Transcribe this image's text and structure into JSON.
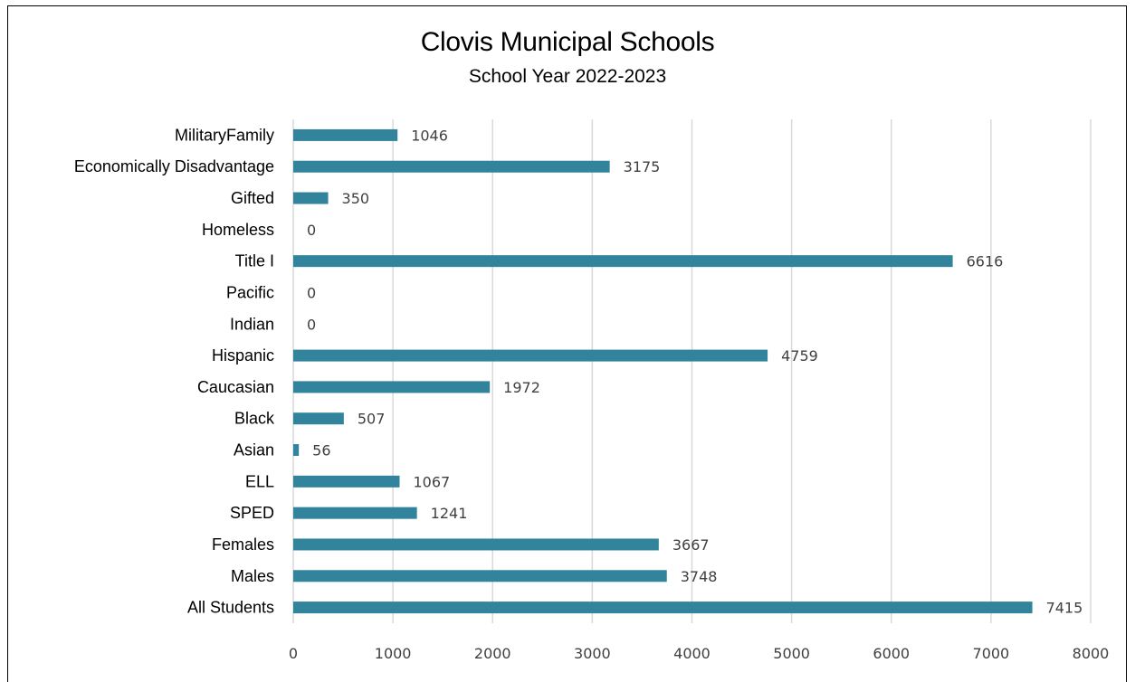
{
  "chart_data": {
    "type": "bar",
    "orientation": "horizontal",
    "title": "Clovis Municipal Schools",
    "subtitle": "School Year 2022-2023",
    "categories": [
      "MilitaryFamily",
      "Economically Disadvantage",
      "Gifted",
      "Homeless",
      "Title I",
      "Pacific",
      "Indian",
      "Hispanic",
      "Caucasian",
      "Black",
      "Asian",
      "ELL",
      "SPED",
      "Females",
      "Males",
      "All Students"
    ],
    "values": [
      1046,
      3175,
      350,
      0,
      6616,
      0,
      0,
      4759,
      1972,
      507,
      56,
      1067,
      1241,
      3667,
      3748,
      7415
    ],
    "xlim": [
      0,
      8000
    ],
    "xticks": [
      0,
      1000,
      2000,
      3000,
      4000,
      5000,
      6000,
      7000,
      8000
    ],
    "grid": "vertical",
    "legend": "none",
    "data_labels": true,
    "bar_color": "#31849B",
    "grid_color": "#D9D9D9"
  }
}
